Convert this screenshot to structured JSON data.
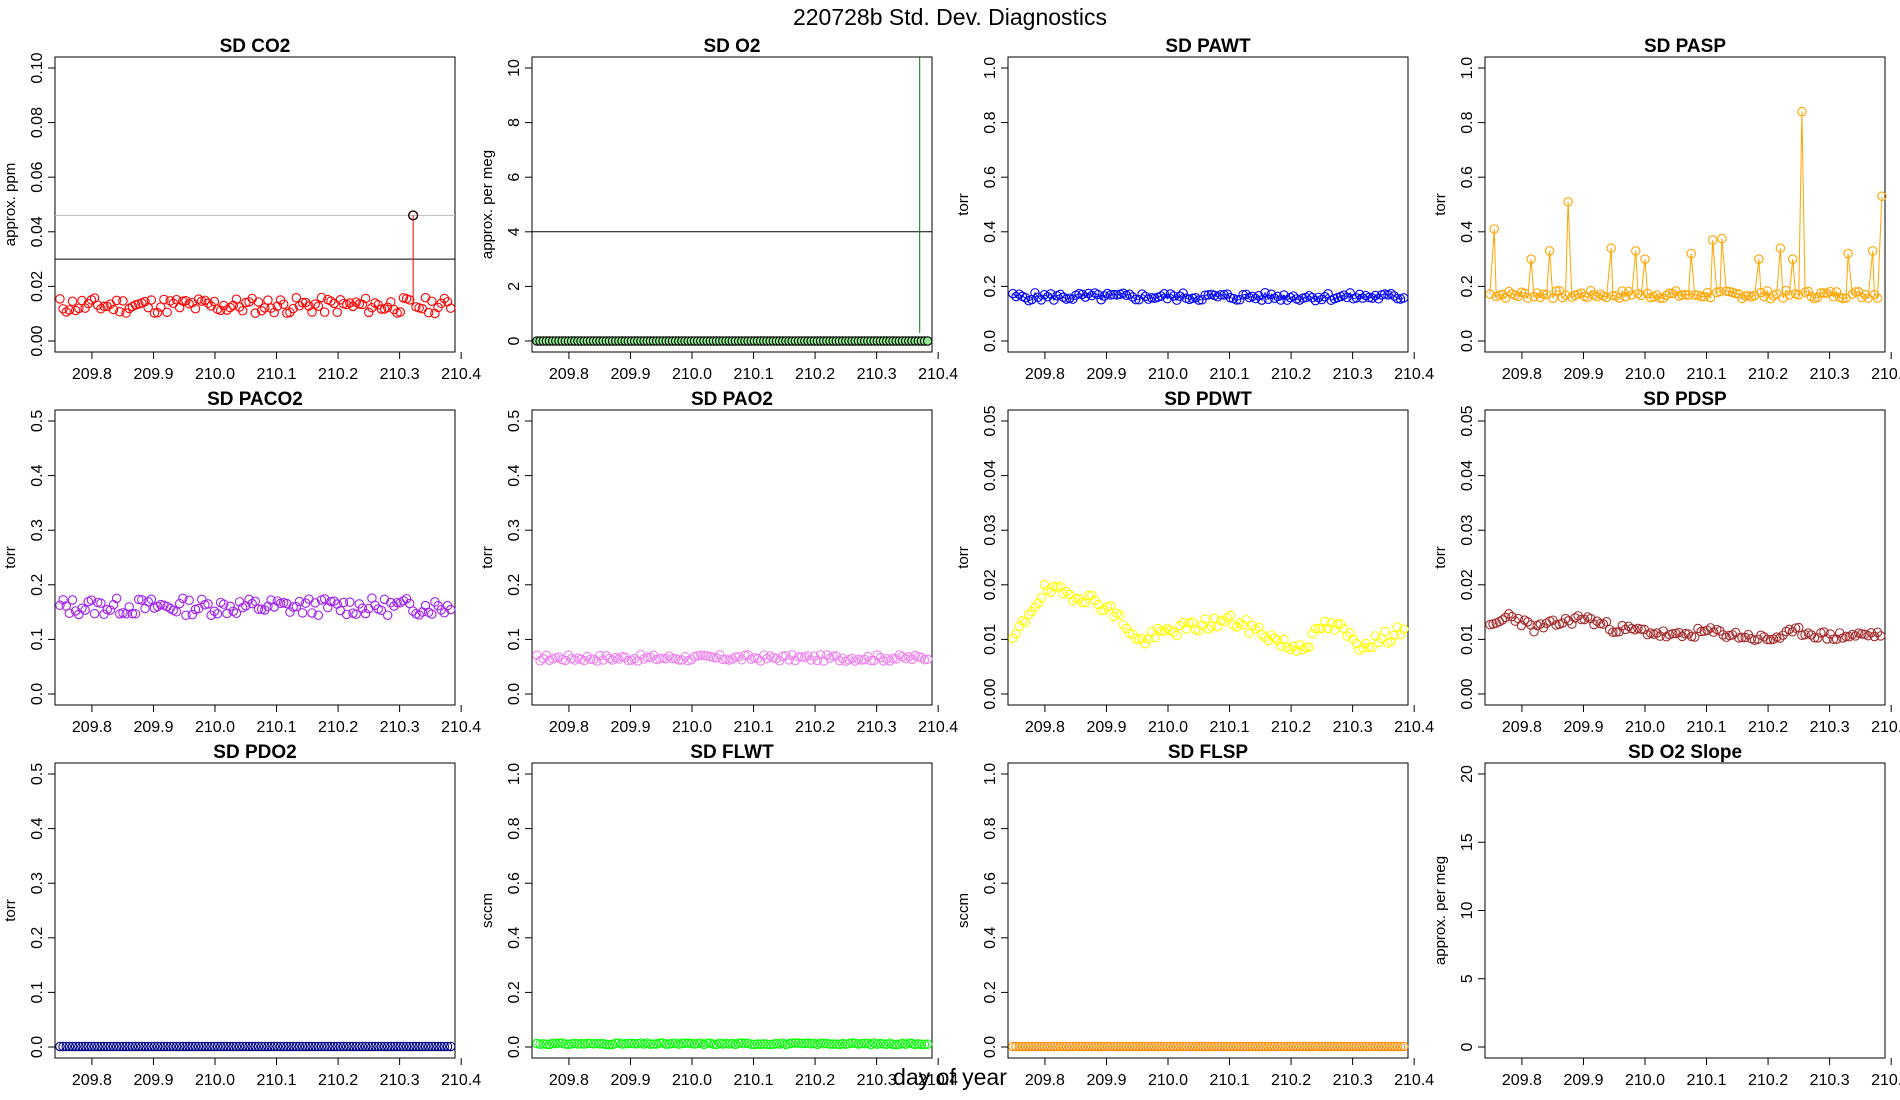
{
  "title": "220728b   Std. Dev. Diagnostics",
  "xlabel": "day of year",
  "x_ticks": [
    "209.8",
    "209.9",
    "210.0",
    "210.1",
    "210.2",
    "210.3",
    "210.4"
  ],
  "chart_data": [
    {
      "type": "scatter",
      "title": "SD CO2",
      "ylabel": "approx. ppm",
      "xlim": [
        209.74,
        210.39
      ],
      "ylim": [
        0,
        0.1
      ],
      "yticks": [
        "0.00",
        "0.02",
        "0.04",
        "0.06",
        "0.08",
        "0.10"
      ],
      "color": "#ff0000",
      "connected": false,
      "hlines": [
        {
          "y": 0.03,
          "color": "#000000"
        },
        {
          "y": 0.046,
          "color": "#bbbbbb"
        }
      ],
      "series": [
        {
          "base": 0.013,
          "amp": 0.003,
          "seed": 11,
          "spikes": [
            {
              "x": 210.322,
              "y": 0.046
            }
          ]
        }
      ],
      "marked": [
        {
          "x": 210.322,
          "y": 0.046
        }
      ]
    },
    {
      "type": "scatter",
      "title": "SD O2",
      "ylabel": "approx. per meg",
      "xlim": [
        209.74,
        210.39
      ],
      "ylim": [
        0,
        10
      ],
      "yticks": [
        "0",
        "2",
        "4",
        "6",
        "8",
        "10"
      ],
      "color": "#000000",
      "fill": "#90ee90",
      "connected": false,
      "hlines": [
        {
          "y": 4,
          "color": "#000000"
        }
      ],
      "vlines": [
        {
          "x": 210.37,
          "color": "#008000"
        }
      ],
      "series": [
        {
          "base": 0.0,
          "amp": 0.0,
          "seed": 3
        }
      ]
    },
    {
      "type": "scatter",
      "title": "SD PAWT",
      "ylabel": "torr",
      "xlim": [
        209.74,
        210.39
      ],
      "ylim": [
        0,
        1.0
      ],
      "yticks": [
        "0.0",
        "0.2",
        "0.4",
        "0.6",
        "0.8",
        "1.0"
      ],
      "color": "#0000ff",
      "connected": true,
      "series": [
        {
          "base": 0.162,
          "amp": 0.015,
          "seed": 5
        }
      ]
    },
    {
      "type": "scatter",
      "title": "SD PASP",
      "ylabel": "torr",
      "xlim": [
        209.74,
        210.39
      ],
      "ylim": [
        0,
        1.0
      ],
      "yticks": [
        "0.0",
        "0.2",
        "0.4",
        "0.6",
        "0.8",
        "1.0"
      ],
      "color": "#ffa500",
      "connected": true,
      "series": [
        {
          "base": 0.17,
          "amp": 0.015,
          "seed": 7,
          "spikes": [
            {
              "x": 209.755,
              "y": 0.41
            },
            {
              "x": 209.815,
              "y": 0.3
            },
            {
              "x": 209.845,
              "y": 0.33
            },
            {
              "x": 209.875,
              "y": 0.51
            },
            {
              "x": 209.945,
              "y": 0.34
            },
            {
              "x": 209.985,
              "y": 0.33
            },
            {
              "x": 210.0,
              "y": 0.3
            },
            {
              "x": 210.075,
              "y": 0.32
            },
            {
              "x": 210.11,
              "y": 0.37
            },
            {
              "x": 210.125,
              "y": 0.375
            },
            {
              "x": 210.185,
              "y": 0.3
            },
            {
              "x": 210.22,
              "y": 0.34
            },
            {
              "x": 210.24,
              "y": 0.3
            },
            {
              "x": 210.255,
              "y": 0.84
            },
            {
              "x": 210.33,
              "y": 0.32
            },
            {
              "x": 210.37,
              "y": 0.33
            },
            {
              "x": 210.385,
              "y": 0.53
            }
          ]
        }
      ]
    },
    {
      "type": "scatter",
      "title": "SD PACO2",
      "ylabel": "torr",
      "xlim": [
        209.74,
        210.39
      ],
      "ylim": [
        0,
        0.5
      ],
      "yticks": [
        "0.0",
        "0.1",
        "0.2",
        "0.3",
        "0.4",
        "0.5"
      ],
      "color": "#a020f0",
      "connected": false,
      "series": [
        {
          "base": 0.16,
          "amp": 0.016,
          "seed": 13
        }
      ]
    },
    {
      "type": "scatter",
      "title": "SD PAO2",
      "ylabel": "torr",
      "xlim": [
        209.74,
        210.39
      ],
      "ylim": [
        0,
        0.5
      ],
      "yticks": [
        "0.0",
        "0.1",
        "0.2",
        "0.3",
        "0.4",
        "0.5"
      ],
      "color": "#ee82ee",
      "connected": false,
      "series": [
        {
          "base": 0.066,
          "amp": 0.006,
          "seed": 17
        }
      ]
    },
    {
      "type": "scatter",
      "title": "SD PDWT",
      "ylabel": "torr",
      "xlim": [
        209.74,
        210.39
      ],
      "ylim": [
        0,
        0.05
      ],
      "yticks": [
        "0.00",
        "0.01",
        "0.02",
        "0.03",
        "0.04",
        "0.05"
      ],
      "color": "#ffff00",
      "connected": false,
      "series": [
        {
          "profile": [
            [
              209.75,
              0.01
            ],
            [
              209.78,
              0.016
            ],
            [
              209.8,
              0.019
            ],
            [
              209.86,
              0.018
            ],
            [
              209.9,
              0.016
            ],
            [
              209.93,
              0.013
            ],
            [
              209.95,
              0.0095
            ],
            [
              210.0,
              0.0115
            ],
            [
              210.05,
              0.0125
            ],
            [
              210.1,
              0.0135
            ],
            [
              210.15,
              0.0115
            ],
            [
              210.2,
              0.0085
            ],
            [
              210.23,
              0.0095
            ],
            [
              210.25,
              0.0125
            ],
            [
              210.28,
              0.012
            ],
            [
              210.31,
              0.009
            ],
            [
              210.36,
              0.0105
            ],
            [
              210.385,
              0.0125
            ]
          ],
          "amp": 0.0012,
          "seed": 19
        }
      ]
    },
    {
      "type": "scatter",
      "title": "SD PDSP",
      "ylabel": "torr",
      "xlim": [
        209.74,
        210.39
      ],
      "ylim": [
        0,
        0.05
      ],
      "yticks": [
        "0.00",
        "0.01",
        "0.02",
        "0.03",
        "0.04",
        "0.05"
      ],
      "color": "#a52a2a",
      "connected": false,
      "series": [
        {
          "profile": [
            [
              209.75,
              0.012
            ],
            [
              209.78,
              0.0145
            ],
            [
              209.82,
              0.012
            ],
            [
              209.9,
              0.014
            ],
            [
              209.95,
              0.012
            ],
            [
              210.0,
              0.0115
            ],
            [
              210.05,
              0.0105
            ],
            [
              210.1,
              0.0115
            ],
            [
              210.2,
              0.01
            ],
            [
              210.25,
              0.0115
            ],
            [
              210.3,
              0.0105
            ],
            [
              210.385,
              0.011
            ]
          ],
          "amp": 0.0008,
          "seed": 23
        }
      ]
    },
    {
      "type": "scatter",
      "title": "SD PDO2",
      "ylabel": "torr",
      "xlim": [
        209.74,
        210.39
      ],
      "ylim": [
        0,
        0.5
      ],
      "yticks": [
        "0.0",
        "0.1",
        "0.2",
        "0.3",
        "0.4",
        "0.5"
      ],
      "color": "#00008b",
      "connected": false,
      "series": [
        {
          "base": 0.001,
          "amp": 0.0,
          "seed": 29
        }
      ]
    },
    {
      "type": "scatter",
      "title": "SD FLWT",
      "ylabel": "sccm",
      "xlim": [
        209.74,
        210.39
      ],
      "ylim": [
        0,
        1.0
      ],
      "yticks": [
        "0.0",
        "0.2",
        "0.4",
        "0.6",
        "0.8",
        "1.0"
      ],
      "color": "#00ff00",
      "connected": false,
      "series": [
        {
          "base": 0.012,
          "amp": 0.003,
          "seed": 31
        }
      ]
    },
    {
      "type": "scatter",
      "title": "SD FLSP",
      "ylabel": "sccm",
      "xlim": [
        209.74,
        210.39
      ],
      "ylim": [
        0,
        1.0
      ],
      "yticks": [
        "0.0",
        "0.2",
        "0.4",
        "0.6",
        "0.8",
        "1.0"
      ],
      "color": "#ff8c00",
      "connected": false,
      "series": [
        {
          "base": 0.002,
          "amp": 0.0,
          "seed": 37
        }
      ]
    },
    {
      "type": "scatter",
      "title": "SD O2 Slope",
      "ylabel": "approx. per meg",
      "xlim": [
        209.74,
        210.39
      ],
      "ylim": [
        0,
        20
      ],
      "yticks": [
        "0",
        "5",
        "10",
        "15",
        "20"
      ],
      "color": "#000000",
      "connected": false,
      "series": []
    }
  ]
}
